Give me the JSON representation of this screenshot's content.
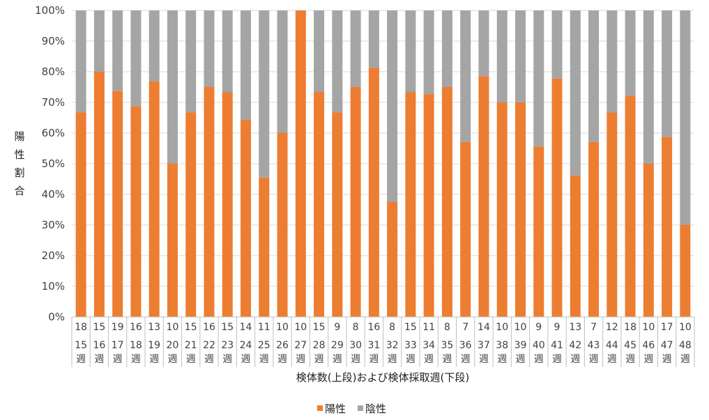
{
  "chart_data": {
    "type": "bar",
    "stacked": true,
    "percent": true,
    "ylabel": "陽性割合",
    "xlabel": "検体数(上段)および検体採取週(下段)",
    "ylim": [
      0,
      100
    ],
    "y_ticks": [
      "0%",
      "10%",
      "20%",
      "30%",
      "40%",
      "50%",
      "60%",
      "70%",
      "80%",
      "90%",
      "100%"
    ],
    "grid": true,
    "legend_position": "bottom",
    "categories": [
      {
        "count": "18",
        "week": "15",
        "unit": "週"
      },
      {
        "count": "15",
        "week": "16",
        "unit": "週"
      },
      {
        "count": "19",
        "week": "17",
        "unit": "週"
      },
      {
        "count": "16",
        "week": "18",
        "unit": "週"
      },
      {
        "count": "13",
        "week": "19",
        "unit": "週"
      },
      {
        "count": "10",
        "week": "20",
        "unit": "週"
      },
      {
        "count": "15",
        "week": "21",
        "unit": "週"
      },
      {
        "count": "16",
        "week": "22",
        "unit": "週"
      },
      {
        "count": "15",
        "week": "23",
        "unit": "週"
      },
      {
        "count": "14",
        "week": "24",
        "unit": "週"
      },
      {
        "count": "11",
        "week": "25",
        "unit": "週"
      },
      {
        "count": "10",
        "week": "26",
        "unit": "週"
      },
      {
        "count": "10",
        "week": "27",
        "unit": "週"
      },
      {
        "count": "15",
        "week": "28",
        "unit": "週"
      },
      {
        "count": "9",
        "week": "29",
        "unit": "週"
      },
      {
        "count": "8",
        "week": "30",
        "unit": "週"
      },
      {
        "count": "16",
        "week": "31",
        "unit": "週"
      },
      {
        "count": "8",
        "week": "32",
        "unit": "週"
      },
      {
        "count": "15",
        "week": "33",
        "unit": "週"
      },
      {
        "count": "11",
        "week": "34",
        "unit": "週"
      },
      {
        "count": "8",
        "week": "35",
        "unit": "週"
      },
      {
        "count": "7",
        "week": "36",
        "unit": "週"
      },
      {
        "count": "14",
        "week": "37",
        "unit": "週"
      },
      {
        "count": "10",
        "week": "38",
        "unit": "週"
      },
      {
        "count": "10",
        "week": "39",
        "unit": "週"
      },
      {
        "count": "9",
        "week": "40",
        "unit": "週"
      },
      {
        "count": "9",
        "week": "41",
        "unit": "週"
      },
      {
        "count": "13",
        "week": "42",
        "unit": "週"
      },
      {
        "count": "7",
        "week": "43",
        "unit": "週"
      },
      {
        "count": "12",
        "week": "44",
        "unit": "週"
      },
      {
        "count": "18",
        "week": "45",
        "unit": "週"
      },
      {
        "count": "10",
        "week": "46",
        "unit": "週"
      },
      {
        "count": "17",
        "week": "47",
        "unit": "週"
      },
      {
        "count": "10",
        "week": "48",
        "unit": "週"
      }
    ],
    "series": [
      {
        "name": "陽性",
        "color": "#ED7D31",
        "values": [
          66.7,
          80.0,
          73.7,
          68.8,
          76.9,
          50.0,
          66.7,
          75.0,
          73.3,
          64.3,
          45.5,
          60.0,
          100.0,
          73.3,
          66.7,
          75.0,
          81.3,
          37.5,
          73.3,
          72.7,
          75.0,
          57.1,
          78.6,
          70.0,
          70.0,
          55.6,
          77.8,
          46.2,
          57.1,
          66.7,
          72.2,
          50.0,
          58.8,
          30.0
        ]
      },
      {
        "name": "陰性",
        "color": "#A5A5A5",
        "values": [
          33.3,
          20.0,
          26.3,
          31.2,
          23.1,
          50.0,
          33.3,
          25.0,
          26.7,
          35.7,
          54.5,
          40.0,
          0.0,
          26.7,
          33.3,
          25.0,
          18.7,
          62.5,
          26.7,
          27.3,
          25.0,
          42.9,
          21.4,
          30.0,
          30.0,
          44.4,
          22.2,
          53.8,
          42.9,
          33.3,
          27.8,
          50.0,
          41.2,
          70.0
        ]
      }
    ]
  }
}
